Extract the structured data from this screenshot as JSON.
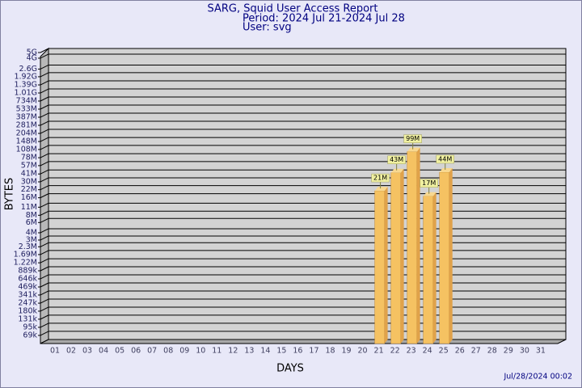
{
  "chart_data": {
    "type": "bar",
    "title": "SARG, Squid User Access Report",
    "subtitle": "Period: 2024 Jul 21-2024 Jul 28",
    "user": "User: svg",
    "footer": "Jul/28/2024 00:02",
    "xlabel": "DAYS",
    "ylabel": "BYTES",
    "categories": [
      "01",
      "02",
      "03",
      "04",
      "05",
      "06",
      "07",
      "08",
      "09",
      "10",
      "11",
      "12",
      "13",
      "14",
      "15",
      "16",
      "17",
      "18",
      "19",
      "20",
      "21",
      "22",
      "23",
      "24",
      "25",
      "26",
      "27",
      "28",
      "29",
      "30",
      "31"
    ],
    "values": [
      null,
      null,
      null,
      null,
      null,
      null,
      null,
      null,
      null,
      null,
      null,
      null,
      null,
      null,
      null,
      null,
      null,
      null,
      null,
      null,
      21000000,
      43000000,
      99000000,
      17000000,
      44000000,
      null,
      null,
      null,
      null,
      null,
      null
    ],
    "value_labels": [
      null,
      null,
      null,
      null,
      null,
      null,
      null,
      null,
      null,
      null,
      null,
      null,
      null,
      null,
      null,
      null,
      null,
      null,
      null,
      null,
      "21M",
      "43M",
      "99M",
      "17M",
      "44M",
      null,
      null,
      null,
      null,
      null,
      null
    ],
    "color": "#f5c262",
    "log_scale": true,
    "grid": true,
    "ylim": [
      50000,
      5000000000
    ],
    "yticks": [
      {
        "value": 69000,
        "label": "69k"
      },
      {
        "value": 95000,
        "label": "95k"
      },
      {
        "value": 131000,
        "label": "131k"
      },
      {
        "value": 180000,
        "label": "180k"
      },
      {
        "value": 247000,
        "label": "247k"
      },
      {
        "value": 341000,
        "label": "341k"
      },
      {
        "value": 469000,
        "label": "469k"
      },
      {
        "value": 646000,
        "label": "646k"
      },
      {
        "value": 889000,
        "label": "889k"
      },
      {
        "value": 1220000,
        "label": "1.22M"
      },
      {
        "value": 1690000,
        "label": "1.69M"
      },
      {
        "value": 2300000,
        "label": "2.3M"
      },
      {
        "value": 3000000,
        "label": "3M"
      },
      {
        "value": 4000000,
        "label": "4M"
      },
      {
        "value": 6000000,
        "label": "6M"
      },
      {
        "value": 8000000,
        "label": "8M"
      },
      {
        "value": 11000000,
        "label": "11M"
      },
      {
        "value": 16000000,
        "label": "16M"
      },
      {
        "value": 22000000,
        "label": "22M"
      },
      {
        "value": 30000000,
        "label": "30M"
      },
      {
        "value": 41000000,
        "label": "41M"
      },
      {
        "value": 57000000,
        "label": "57M"
      },
      {
        "value": 78000000,
        "label": "78M"
      },
      {
        "value": 108000000,
        "label": "108M"
      },
      {
        "value": 148000000,
        "label": "148M"
      },
      {
        "value": 204000000,
        "label": "204M"
      },
      {
        "value": 281000000,
        "label": "281M"
      },
      {
        "value": 387000000,
        "label": "387M"
      },
      {
        "value": 533000000,
        "label": "533M"
      },
      {
        "value": 734000000,
        "label": "734M"
      },
      {
        "value": 1010000000,
        "label": "1.01G"
      },
      {
        "value": 1390000000,
        "label": "1.39G"
      },
      {
        "value": 1920000000,
        "label": "1.92G"
      },
      {
        "value": 2600000000,
        "label": "2.6G"
      },
      {
        "value": 4000000000,
        "label": "4G"
      },
      {
        "value": 5000000000,
        "label": "5G"
      }
    ]
  }
}
